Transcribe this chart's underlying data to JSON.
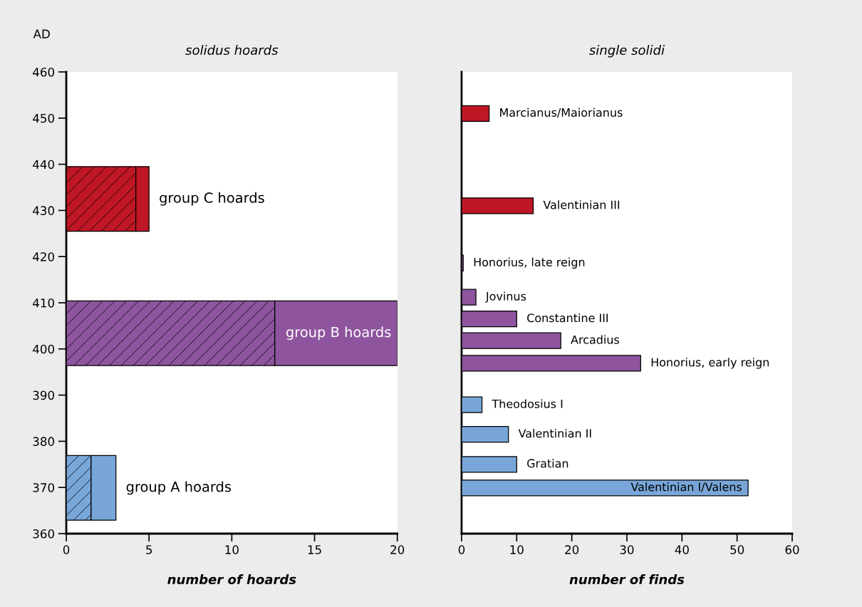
{
  "chart_data": [
    {
      "type": "bar",
      "orientation": "horizontal",
      "stacked": true,
      "title": "solidus hoards",
      "xlabel": "number of hoards",
      "ylabel": "AD",
      "x": [
        369.9,
        403.4,
        432.5
      ],
      "series": [
        {
          "colors": [
            "#78a6d8",
            "#8e559e",
            "#bf1725"
          ],
          "values": [
            1.5,
            12.6,
            4.2
          ]
        },
        {
          "colors": [
            "#78a6d8",
            "#8e559e",
            "#bf1725"
          ],
          "values": [
            1.5,
            7.4,
            0.8
          ]
        }
      ],
      "xlim": [
        0,
        20
      ],
      "xticks": [
        0,
        5,
        10,
        15,
        20
      ],
      "ylim": [
        360,
        460
      ],
      "yticks": [
        360,
        370,
        380,
        390,
        400,
        410,
        420,
        430,
        440,
        450,
        460
      ],
      "annotations": [
        {
          "text": "group A hoards",
          "x": 3.0,
          "y": 369.9
        },
        {
          "text": "group B hoards",
          "x": 20,
          "y": 403.4
        },
        {
          "text": "group C hoards",
          "x": 5.0,
          "y": 432.5
        }
      ]
    },
    {
      "type": "bar",
      "orientation": "horizontal",
      "title": "single solidi",
      "xlabel": "number of finds",
      "x": [
        451,
        431,
        418.6,
        411.2,
        406.5,
        401.8,
        396.9,
        387.9,
        381.5,
        375,
        369.9
      ],
      "values": [
        5,
        13,
        0.3,
        2.6,
        10,
        18,
        32.5,
        3.7,
        8.5,
        10,
        52
      ],
      "colors": [
        "#bf1725",
        "#bf1725",
        "#8e559e",
        "#8e559e",
        "#8e559e",
        "#8e559e",
        "#8e559e",
        "#78a6d8",
        "#78a6d8",
        "#78a6d8",
        "#78a6d8"
      ],
      "xlim": [
        0,
        60
      ],
      "xticks": [
        0,
        10,
        20,
        30,
        40,
        50,
        60
      ],
      "ylim": [
        360,
        460
      ],
      "tick_labels": "x",
      "annotations": [
        {
          "text": "Marcianus/Maiorianus",
          "x": 5,
          "y": 451
        },
        {
          "text": "Valentinian III",
          "x": 13,
          "y": 431
        },
        {
          "text": "Honorius, late reign",
          "x": 0.3,
          "y": 418.6
        },
        {
          "text": "Jovinus",
          "x": 2.6,
          "y": 411.2
        },
        {
          "text": "Constantine III",
          "x": 10,
          "y": 406.5
        },
        {
          "text": "Arcadius",
          "x": 18,
          "y": 401.8
        },
        {
          "text": "Honorius, early reign",
          "x": 32.5,
          "y": 396.9
        },
        {
          "text": "Theodosius I",
          "x": 3.7,
          "y": 387.9
        },
        {
          "text": "Valentinian II",
          "x": 8.5,
          "y": 381.5
        },
        {
          "text": "Gratian",
          "x": 10,
          "y": 375
        },
        {
          "text": "Valentinian I/Valens",
          "x": 52,
          "y": 369.9
        }
      ]
    }
  ]
}
